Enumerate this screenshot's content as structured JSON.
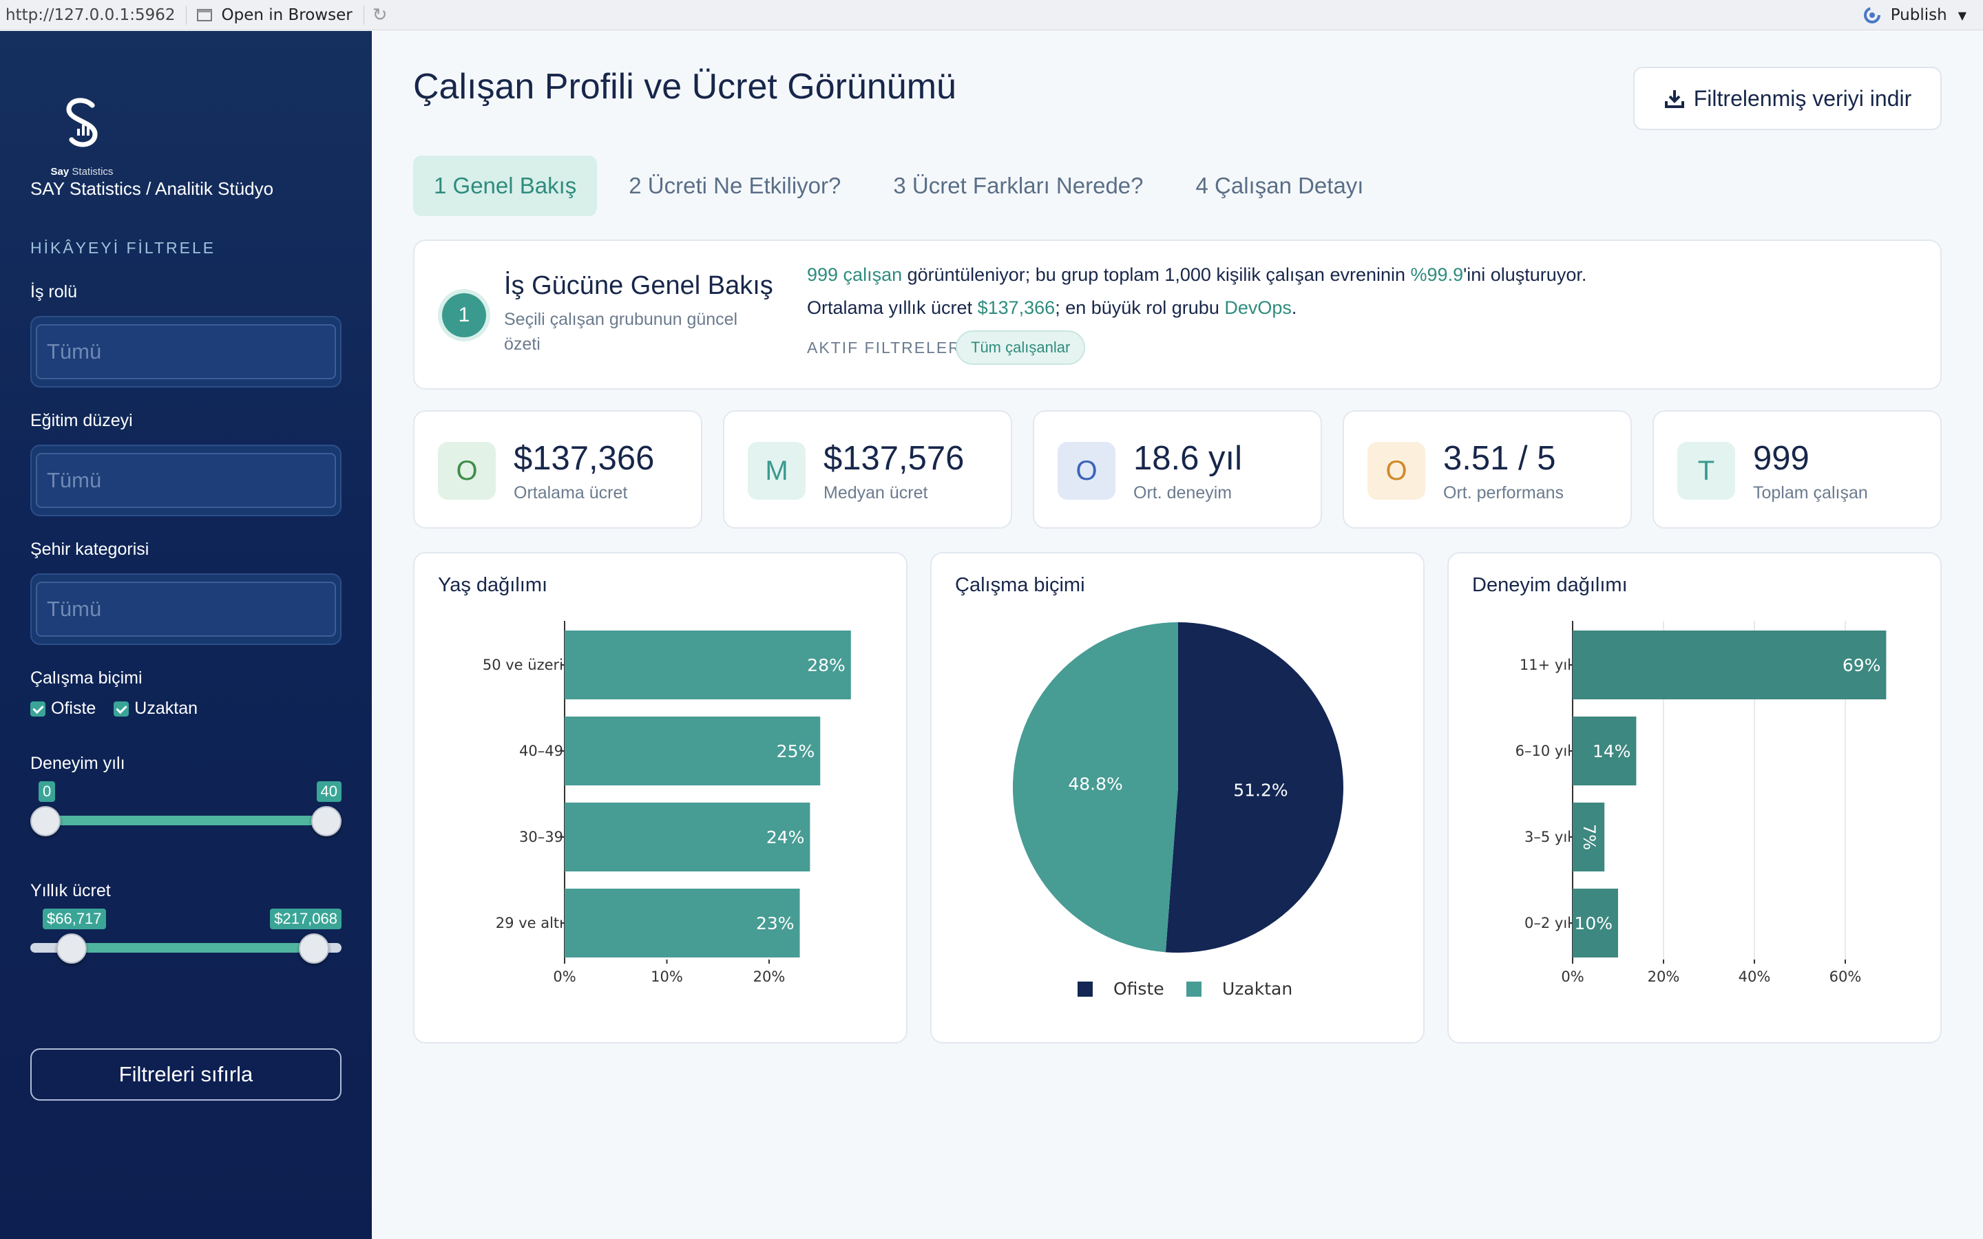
{
  "browser": {
    "url": "http://127.0.0.1:5962",
    "open_label": "Open in Browser",
    "publish_label": "Publish"
  },
  "sidebar": {
    "logo_brand": "Say",
    "logo_suffix": "Statistics",
    "brand": "SAY Statistics / Analitik Stüdyo",
    "section": "HİKÂYEYİ FİLTRELE",
    "role_label": "İş rolü",
    "role_placeholder": "Tümü",
    "education_label": "Eğitim düzeyi",
    "education_placeholder": "Tümü",
    "city_label": "Şehir kategorisi",
    "city_placeholder": "Tümü",
    "work_label": "Çalışma biçimi",
    "work_options": [
      "Ofiste",
      "Uzaktan"
    ],
    "experience_label": "Deneyim yılı",
    "experience_min": "0",
    "experience_max": "40",
    "salary_label": "Yıllık ücret",
    "salary_min": "$66,717",
    "salary_max": "$217,068",
    "reset_label": "Filtreleri sıfırla"
  },
  "header": {
    "title": "Çalışan Profili ve Ücret Görünümü",
    "download_label": "Filtrelenmiş veriyi indir"
  },
  "tabs": [
    {
      "label": "1 Genel Bakış"
    },
    {
      "label": "2 Ücreti Ne Etkiliyor?"
    },
    {
      "label": "3 Ücret Farkları Nerede?"
    },
    {
      "label": "4 Çalışan Detayı"
    }
  ],
  "intro": {
    "step": "1",
    "title": "İş Gücüne Genel Bakış",
    "subtitle": "Seçili çalışan grubunun güncel özeti",
    "line1_a": "999 çalışan",
    "line1_b": " görüntüleniyor; bu grup toplam 1,000 kişilik çalışan evreninin ",
    "line1_c": "%99.9",
    "line1_d": "'ini oluşturuyor.",
    "line2_a": "Ortalama yıllık ücret ",
    "line2_b": "$137,366",
    "line2_c": "; en büyük rol grubu ",
    "line2_d": "DevOps",
    "line2_e": ".",
    "filters_label": "AKTIF FILTRELER",
    "filter_pill": "Tüm çalışanlar"
  },
  "kpis": [
    {
      "icon": "O",
      "value": "$137,366",
      "label": "Ortalama ücret",
      "bg": "#e3f2e6",
      "fg": "#3e8e4c"
    },
    {
      "icon": "M",
      "value": "$137,576",
      "label": "Medyan ücret",
      "bg": "#e2f3f0",
      "fg": "#3a9a8e"
    },
    {
      "icon": "O",
      "value": "18.6 yıl",
      "label": "Ort. deneyim",
      "bg": "#e1e9f7",
      "fg": "#3b63b8"
    },
    {
      "icon": "O",
      "value": "3.51 / 5",
      "label": "Ort. performans",
      "bg": "#fcefdc",
      "fg": "#d08a2a"
    },
    {
      "icon": "T",
      "value": "999",
      "label": "Toplam çalışan",
      "bg": "#e2f3f0",
      "fg": "#3a9a8e"
    }
  ],
  "chart_data": [
    {
      "type": "bar",
      "orientation": "horizontal",
      "title": "Yaş dağılımı",
      "categories": [
        "50 ve üzeri",
        "40–49",
        "30–39",
        "29 ve altı"
      ],
      "values": [
        28,
        25,
        24,
        23
      ],
      "data_labels": [
        "28%",
        "25%",
        "24%",
        "23%"
      ],
      "xticks": [
        "0%",
        "10%",
        "20%"
      ],
      "xlim": [
        0,
        30
      ],
      "color": "#479c94"
    },
    {
      "type": "pie",
      "title": "Çalışma biçimi",
      "categories": [
        "Ofiste",
        "Uzaktan"
      ],
      "values": [
        51.2,
        48.8
      ],
      "data_labels": [
        "51.2%",
        "48.8%"
      ],
      "colors": [
        "#132654",
        "#479c94"
      ],
      "legend": "bottom"
    },
    {
      "type": "bar",
      "orientation": "horizontal",
      "title": "Deneyim dağılımı",
      "categories": [
        "11+ yıl",
        "6–10 yıl",
        "3–5 yıl",
        "0–2 yıl"
      ],
      "values": [
        69,
        14,
        7,
        10
      ],
      "data_labels": [
        "69%",
        "14%",
        "7%",
        "10%"
      ],
      "xticks": [
        "0%",
        "20%",
        "40%",
        "60%"
      ],
      "xlim": [
        0,
        80
      ],
      "gridlines": true,
      "color": "#3d8880"
    }
  ]
}
